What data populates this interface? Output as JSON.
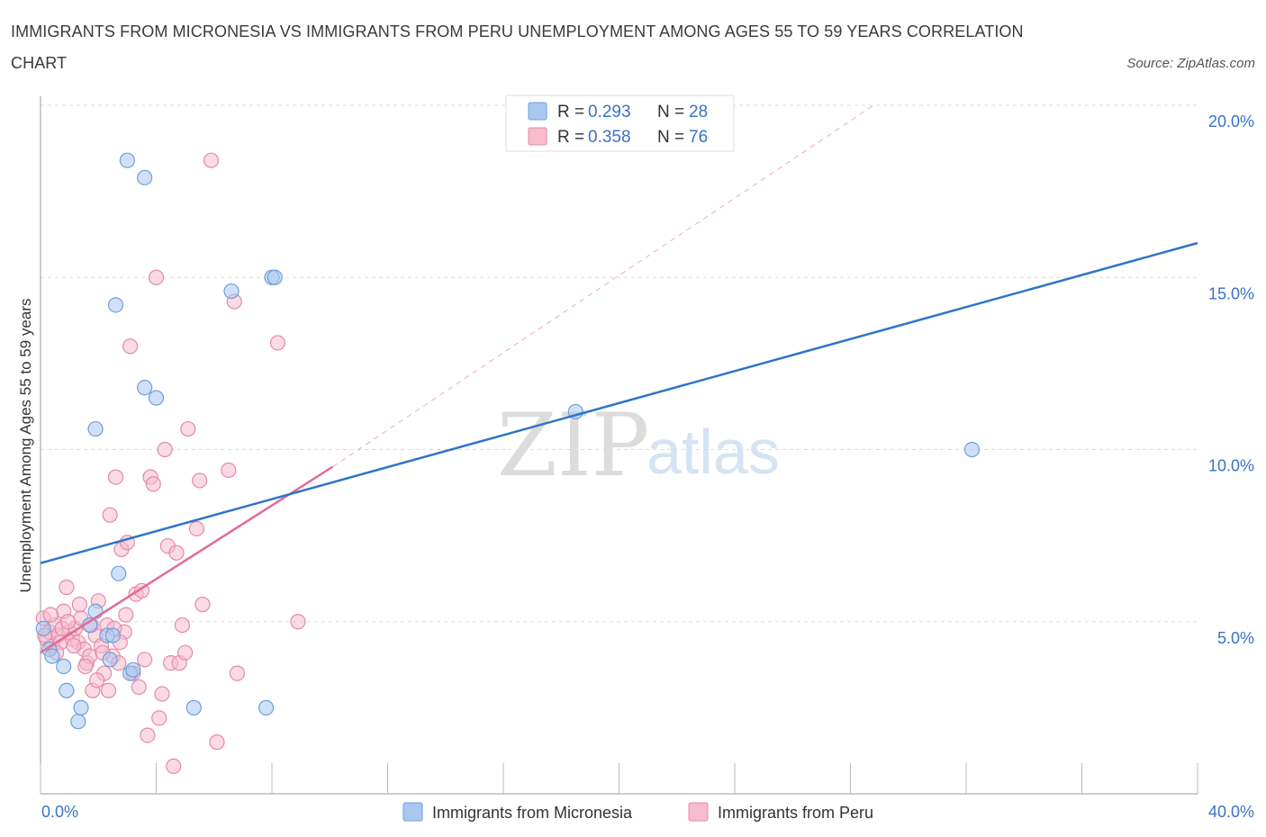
{
  "title": "IMMIGRANTS FROM MICRONESIA VS IMMIGRANTS FROM PERU UNEMPLOYMENT AMONG AGES 55 TO 59 YEARS CORRELATION CHART",
  "source": "Source: ZipAtlas.com",
  "watermark": {
    "zip": "ZIP",
    "atlas": "atlas"
  },
  "colors": {
    "blue_fill": "#a9c8f0",
    "blue_stroke": "#6e9fdc",
    "blue_line": "#2f74c8",
    "pink_fill": "#f6bccd",
    "pink_stroke": "#e58aa8",
    "pink_line": "#e36a97",
    "axis_text": "#3a72c4",
    "grid": "#dddddd"
  },
  "legend": {
    "rows": [
      {
        "r_label": "R =",
        "r_value": "0.293",
        "n_label": "N =",
        "n_value": "28"
      },
      {
        "r_label": "R =",
        "r_value": "0.358",
        "n_label": "N =",
        "n_value": "76"
      }
    ]
  },
  "chart_data": {
    "type": "scatter",
    "title": "IMMIGRANTS FROM MICRONESIA VS IMMIGRANTS FROM PERU UNEMPLOYMENT AMONG AGES 55 TO 59 YEARS CORRELATION CHART",
    "xlabel": "",
    "ylabel": "Unemployment Among Ages 55 to 59 years",
    "xlim": [
      0,
      40
    ],
    "ylim": [
      0,
      20
    ],
    "x_tick_labels": [
      "0.0%",
      "40.0%"
    ],
    "y_ticks": [
      5,
      10,
      15,
      20
    ],
    "y_tick_labels": [
      "5.0%",
      "10.0%",
      "15.0%",
      "20.0%"
    ],
    "grid": true,
    "legend_position": "top-center",
    "series": [
      {
        "name": "Immigrants from Micronesia",
        "R": 0.293,
        "N": 28,
        "trend": {
          "x0": 0,
          "y0": 6.7,
          "x1": 40,
          "y1": 16.0
        },
        "points": [
          [
            0.1,
            4.8
          ],
          [
            0.3,
            4.2
          ],
          [
            0.4,
            4.0
          ],
          [
            0.8,
            3.7
          ],
          [
            0.9,
            3.0
          ],
          [
            1.3,
            2.1
          ],
          [
            1.4,
            2.5
          ],
          [
            1.7,
            4.9
          ],
          [
            1.9,
            5.3
          ],
          [
            2.3,
            4.6
          ],
          [
            2.4,
            3.9
          ],
          [
            2.5,
            4.6
          ],
          [
            2.6,
            14.2
          ],
          [
            2.7,
            6.4
          ],
          [
            3.0,
            18.4
          ],
          [
            3.1,
            3.5
          ],
          [
            3.2,
            3.6
          ],
          [
            3.6,
            17.9
          ],
          [
            3.6,
            11.8
          ],
          [
            4.0,
            11.5
          ],
          [
            1.9,
            10.6
          ],
          [
            5.3,
            2.5
          ],
          [
            6.6,
            14.6
          ],
          [
            7.8,
            2.5
          ],
          [
            8.0,
            15.0
          ],
          [
            8.1,
            15.0
          ],
          [
            18.5,
            11.1
          ],
          [
            32.2,
            10.0
          ]
        ]
      },
      {
        "name": "Immigrants from Peru",
        "R": 0.358,
        "N": 76,
        "trend": {
          "x0": 0,
          "y0": 4.1,
          "x1": 10.1,
          "y1": 9.5
        },
        "trend_extension": {
          "x0": 10.1,
          "y0": 9.5,
          "x1": 28.8,
          "y1": 20.0
        },
        "points": [
          [
            0.1,
            5.1
          ],
          [
            0.2,
            4.5
          ],
          [
            0.3,
            4.7
          ],
          [
            0.4,
            4.3
          ],
          [
            0.5,
            4.9
          ],
          [
            0.6,
            4.6
          ],
          [
            0.7,
            4.4
          ],
          [
            0.8,
            5.3
          ],
          [
            0.9,
            6.0
          ],
          [
            1.0,
            4.7
          ],
          [
            1.1,
            4.5
          ],
          [
            1.2,
            4.8
          ],
          [
            1.3,
            4.4
          ],
          [
            1.4,
            5.1
          ],
          [
            1.5,
            4.2
          ],
          [
            1.6,
            3.8
          ],
          [
            1.7,
            4.0
          ],
          [
            1.8,
            3.0
          ],
          [
            1.9,
            4.6
          ],
          [
            2.0,
            5.6
          ],
          [
            2.1,
            4.3
          ],
          [
            2.2,
            3.5
          ],
          [
            2.3,
            4.9
          ],
          [
            2.4,
            8.1
          ],
          [
            2.5,
            4.0
          ],
          [
            2.6,
            9.2
          ],
          [
            2.7,
            3.8
          ],
          [
            2.8,
            7.1
          ],
          [
            2.9,
            4.7
          ],
          [
            3.0,
            7.3
          ],
          [
            3.1,
            13.0
          ],
          [
            3.2,
            3.5
          ],
          [
            3.3,
            5.8
          ],
          [
            3.4,
            3.1
          ],
          [
            3.5,
            5.9
          ],
          [
            3.6,
            3.9
          ],
          [
            3.7,
            1.7
          ],
          [
            3.8,
            9.2
          ],
          [
            3.9,
            9.0
          ],
          [
            4.0,
            15.0
          ],
          [
            4.1,
            2.2
          ],
          [
            4.2,
            2.9
          ],
          [
            4.3,
            10.0
          ],
          [
            4.4,
            7.2
          ],
          [
            4.5,
            3.8
          ],
          [
            4.6,
            0.8
          ],
          [
            4.7,
            7.0
          ],
          [
            4.8,
            3.8
          ],
          [
            4.9,
            4.9
          ],
          [
            5.0,
            4.1
          ],
          [
            5.1,
            10.6
          ],
          [
            5.4,
            7.7
          ],
          [
            5.5,
            9.1
          ],
          [
            5.6,
            5.5
          ],
          [
            5.9,
            18.4
          ],
          [
            6.1,
            1.5
          ],
          [
            6.5,
            9.4
          ],
          [
            6.7,
            14.3
          ],
          [
            6.8,
            3.5
          ],
          [
            8.2,
            13.1
          ],
          [
            8.9,
            5.0
          ],
          [
            0.15,
            4.6
          ],
          [
            0.35,
            5.2
          ],
          [
            0.55,
            4.1
          ],
          [
            0.75,
            4.8
          ],
          [
            0.95,
            5.0
          ],
          [
            1.15,
            4.3
          ],
          [
            1.35,
            5.5
          ],
          [
            1.55,
            3.7
          ],
          [
            1.75,
            4.9
          ],
          [
            1.95,
            3.3
          ],
          [
            2.15,
            4.1
          ],
          [
            2.35,
            3.0
          ],
          [
            2.55,
            4.8
          ],
          [
            2.75,
            4.4
          ],
          [
            2.95,
            5.2
          ]
        ]
      }
    ]
  },
  "bottom_legend": [
    {
      "label": "Immigrants from Micronesia"
    },
    {
      "label": "Immigrants from Peru"
    }
  ]
}
